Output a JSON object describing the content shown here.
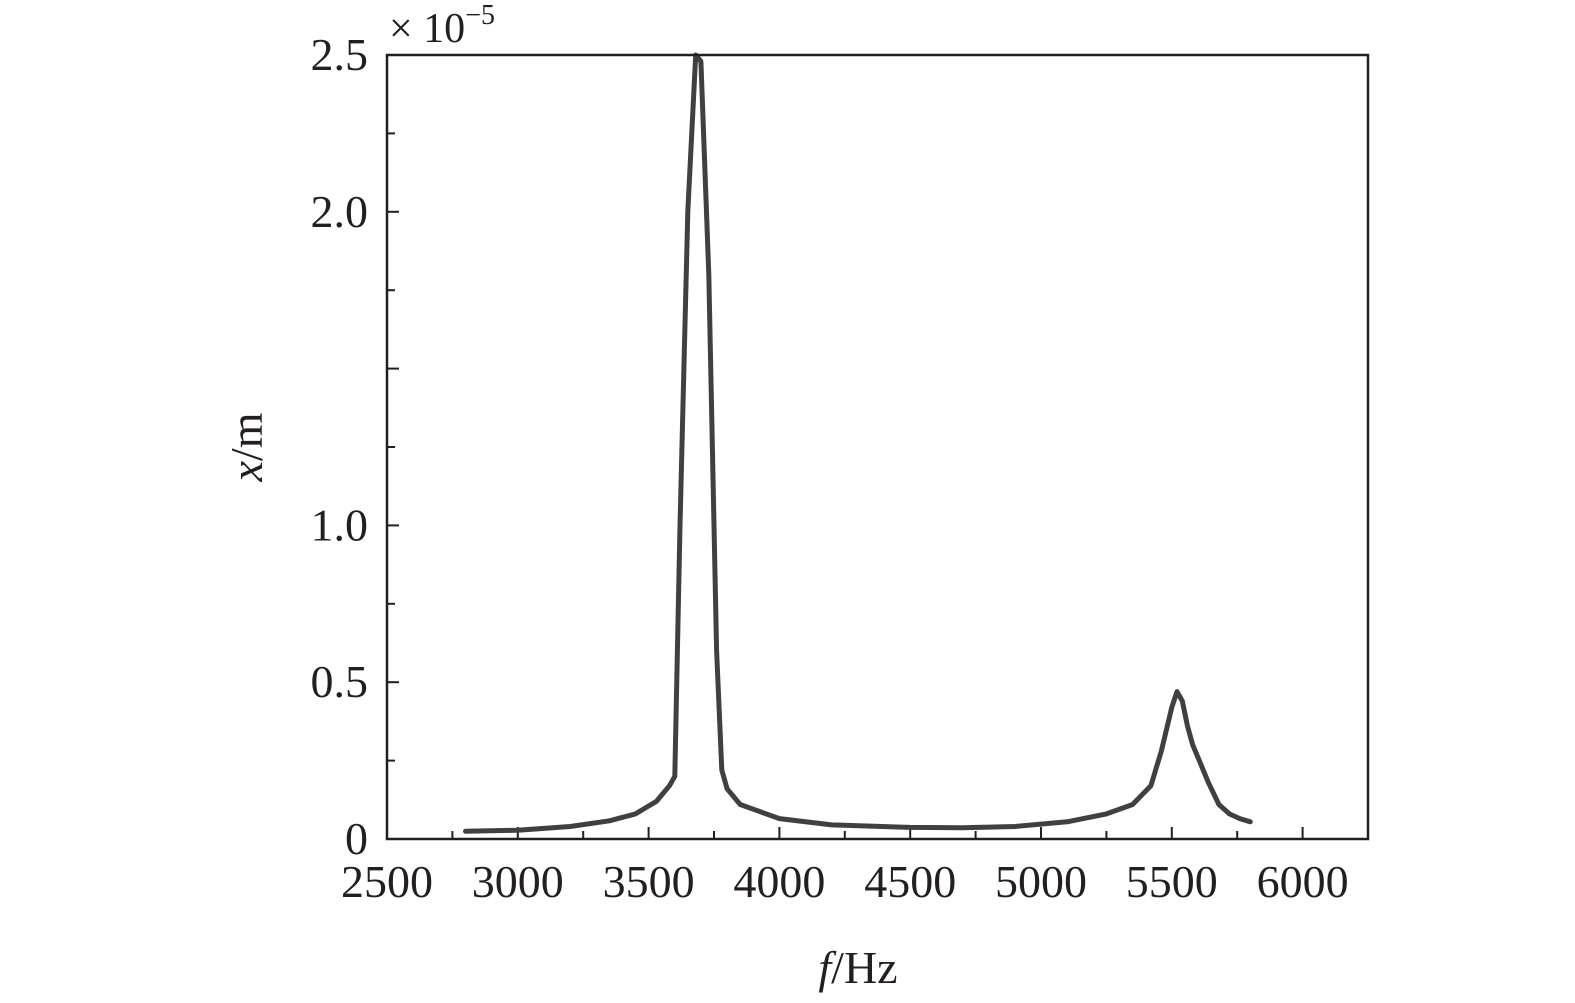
{
  "chart_data": {
    "type": "line",
    "title": "",
    "xlabel_italic": "f",
    "xlabel_unit": "/Hz",
    "ylabel_italic": "x",
    "ylabel_unit": "/m",
    "y_multiplier_base": "× 10",
    "y_multiplier_exp": "−5",
    "xlim": [
      2500,
      6250
    ],
    "ylim": [
      0,
      2.5
    ],
    "x_ticks": [
      2500,
      3000,
      3500,
      4000,
      4500,
      5000,
      5500,
      6000
    ],
    "x_tick_labels": [
      "2500",
      "3000",
      "3500",
      "4000",
      "4500",
      "5000",
      "5500",
      "6000"
    ],
    "y_ticks": [
      0,
      0.5,
      1.0,
      1.5,
      2.0,
      2.5
    ],
    "y_tick_labels": [
      "0",
      "0.5",
      "1.0",
      "",
      "2.0",
      "2.5"
    ],
    "x_minor_step": 250,
    "y_minor_step": 0.25,
    "grid": false,
    "series": [
      {
        "color": "#404040",
        "x": [
          2800,
          3000,
          3200,
          3350,
          3450,
          3530,
          3580,
          3600,
          3620,
          3650,
          3680,
          3700,
          3730,
          3760,
          3780,
          3800,
          3850,
          3900,
          4000,
          4200,
          4500,
          4700,
          4900,
          5100,
          5250,
          5350,
          5420,
          5460,
          5500,
          5520,
          5540,
          5560,
          5580,
          5600,
          5640,
          5680,
          5720,
          5760,
          5800
        ],
        "values": [
          0.025,
          0.028,
          0.04,
          0.058,
          0.08,
          0.12,
          0.17,
          0.2,
          1.0,
          2.0,
          2.5,
          2.48,
          1.8,
          0.6,
          0.22,
          0.16,
          0.11,
          0.095,
          0.065,
          0.045,
          0.037,
          0.036,
          0.04,
          0.055,
          0.08,
          0.11,
          0.17,
          0.28,
          0.42,
          0.47,
          0.44,
          0.36,
          0.3,
          0.26,
          0.18,
          0.11,
          0.08,
          0.065,
          0.055
        ]
      }
    ]
  }
}
